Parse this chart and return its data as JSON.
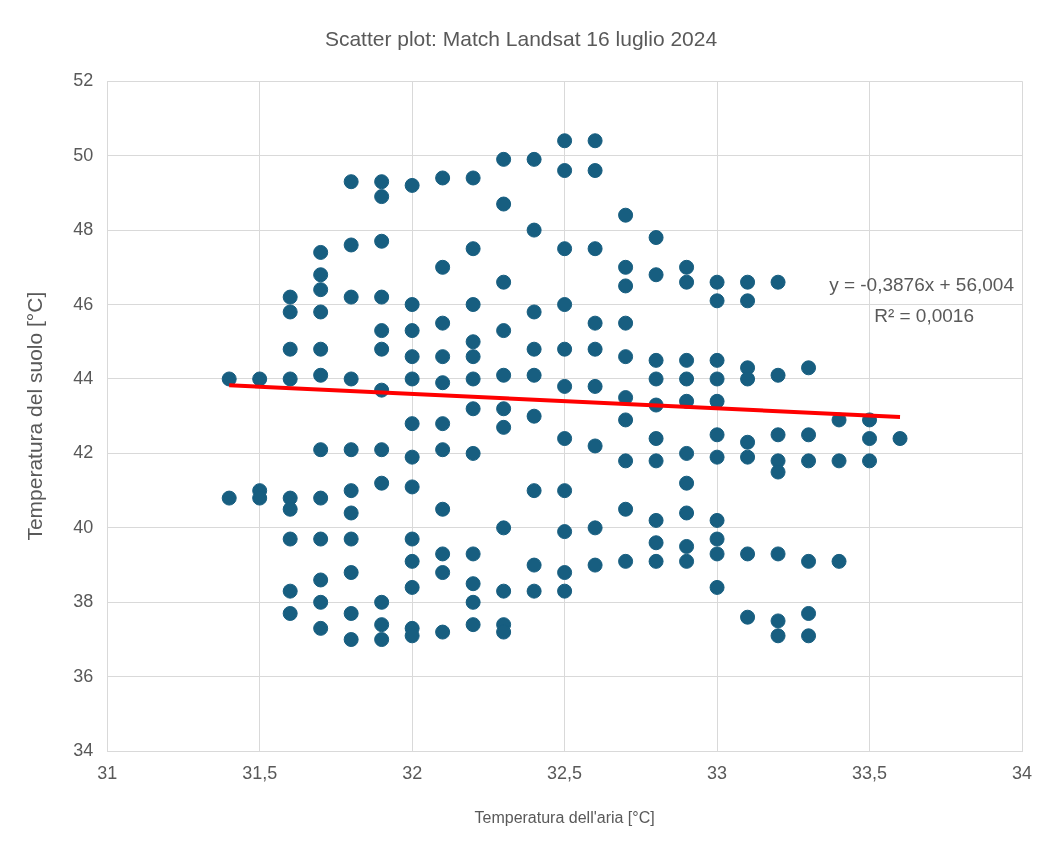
{
  "chart_data": {
    "type": "scatter",
    "title": "Scatter plot: Match Landsat 16 luglio 2024",
    "xlabel": "Temperatura dell'aria [°C]",
    "ylabel": "Temperatura del suolo [°C]",
    "xlim": [
      31,
      34
    ],
    "xticks": [
      31,
      {
        "value": 31.5,
        "label": "31,5"
      },
      32,
      {
        "value": 32.5,
        "label": "32,5"
      },
      33,
      {
        "value": 33.5,
        "label": "33,5"
      },
      34
    ],
    "ylim": [
      34,
      52
    ],
    "yticks": [
      34,
      36,
      38,
      40,
      42,
      44,
      46,
      48,
      50,
      52
    ],
    "grid": true,
    "legend": false,
    "annotations": [
      "y = -0,3876x + 56,004",
      "R² = 0,0016"
    ],
    "series": [
      {
        "marker": "circle",
        "color": "#175e80",
        "x": [
          31.4,
          31.4,
          31.5,
          31.5,
          31.5,
          31.6,
          31.6,
          31.6,
          31.6,
          31.6,
          31.6,
          31.6,
          31.6,
          31.6,
          31.7,
          31.7,
          31.7,
          31.7,
          31.7,
          31.7,
          31.7,
          31.7,
          31.7,
          31.7,
          31.7,
          31.7,
          31.8,
          31.8,
          31.8,
          31.8,
          31.8,
          31.8,
          31.8,
          31.8,
          31.8,
          31.8,
          31.8,
          31.9,
          31.9,
          31.9,
          31.9,
          31.9,
          31.9,
          31.9,
          31.9,
          31.9,
          31.9,
          31.9,
          31.9,
          32,
          32,
          32,
          32,
          32,
          32,
          32,
          32,
          32,
          32,
          32,
          32,
          32,
          32.1,
          32.1,
          32.1,
          32.1,
          32.1,
          32.1,
          32.1,
          32.1,
          32.1,
          32.1,
          32.1,
          32.2,
          32.2,
          32.2,
          32.2,
          32.2,
          32.2,
          32.2,
          32.2,
          32.2,
          32.2,
          32.2,
          32.2,
          32.3,
          32.3,
          32.3,
          32.3,
          32.3,
          32.3,
          32.3,
          32.3,
          32.3,
          32.3,
          32.3,
          32.4,
          32.4,
          32.4,
          32.4,
          32.4,
          32.4,
          32.4,
          32.4,
          32.4,
          32.5,
          32.5,
          32.5,
          32.5,
          32.5,
          32.5,
          32.5,
          32.5,
          32.5,
          32.5,
          32.5,
          32.6,
          32.6,
          32.6,
          32.6,
          32.6,
          32.6,
          32.6,
          32.6,
          32.6,
          32.7,
          32.7,
          32.7,
          32.7,
          32.7,
          32.7,
          32.7,
          32.7,
          32.7,
          32.7,
          32.8,
          32.8,
          32.8,
          32.8,
          32.8,
          32.8,
          32.8,
          32.8,
          32.8,
          32.8,
          32.9,
          32.9,
          32.9,
          32.9,
          32.9,
          32.9,
          32.9,
          32.9,
          32.9,
          32.9,
          33,
          33,
          33,
          33,
          33,
          33,
          33,
          33,
          33,
          33,
          33,
          33.1,
          33.1,
          33.1,
          33.1,
          33.1,
          33.1,
          33.1,
          33.1,
          33.2,
          33.2,
          33.2,
          33.2,
          33.2,
          33.2,
          33.2,
          33.2,
          33.3,
          33.3,
          33.3,
          33.3,
          33.3,
          33.3,
          33.4,
          33.4,
          33.4,
          33.5,
          33.5,
          33.5,
          33.6
        ],
        "values": [
          44,
          40.8,
          44,
          41,
          40.8,
          46.2,
          45.8,
          44.8,
          44,
          40.8,
          40.5,
          39.7,
          38.3,
          37.7,
          47.4,
          46.8,
          46.4,
          45.8,
          44.8,
          44.1,
          42.1,
          40.8,
          39.7,
          38.6,
          38,
          37.3,
          49.3,
          47.6,
          46.2,
          44,
          42.1,
          41,
          40.4,
          39.7,
          38.8,
          37.7,
          37,
          49.3,
          48.9,
          47.7,
          46.2,
          45.3,
          44.8,
          43.7,
          42.1,
          41.2,
          38,
          37.4,
          37,
          49.2,
          46,
          45.3,
          44.6,
          44,
          42.8,
          41.9,
          41.1,
          39.7,
          39.1,
          38.4,
          37.3,
          37.1,
          49.4,
          47,
          45.5,
          44.6,
          43.9,
          42.8,
          42.1,
          40.5,
          39.3,
          38.8,
          37.2,
          49.4,
          47.5,
          46,
          45,
          44.6,
          44,
          43.2,
          42,
          39.3,
          38.5,
          38,
          37.4,
          49.9,
          48.7,
          46.6,
          45.3,
          44.1,
          43.2,
          42.7,
          40,
          38.3,
          37.4,
          37.2,
          49.9,
          48,
          45.8,
          44.8,
          44.1,
          43,
          41,
          39,
          38.3,
          50.4,
          49.6,
          47.5,
          46,
          44.8,
          43.8,
          42.4,
          41,
          39.9,
          38.8,
          38.3,
          50.4,
          49.6,
          47.5,
          45.5,
          44.8,
          43.8,
          42.2,
          40,
          39,
          48.4,
          47,
          46.5,
          45.5,
          44.6,
          43.5,
          42.9,
          41.8,
          40.5,
          39.1,
          47.8,
          46.8,
          44.5,
          44,
          43.3,
          42.4,
          41.8,
          40.2,
          39.6,
          39.1,
          47,
          46.6,
          44.5,
          44,
          43.4,
          42,
          41.2,
          40.4,
          39.5,
          39.1,
          46.6,
          46.1,
          44.5,
          44,
          43.4,
          42.5,
          41.9,
          40.2,
          39.7,
          39.3,
          38.4,
          46.6,
          46.1,
          44.3,
          44,
          42.3,
          41.9,
          39.3,
          37.6,
          46.6,
          44.1,
          42.5,
          41.8,
          41.5,
          39.3,
          37.5,
          37.1,
          44.3,
          42.5,
          41.8,
          39.1,
          37.7,
          37.1,
          42.9,
          41.8,
          39.1,
          42.9,
          42.4,
          41.8,
          42.4
        ]
      },
      {
        "type": "line",
        "marker": "none",
        "color": "#ff0000",
        "x": [
          31.4,
          33.6
        ],
        "values": [
          43.83,
          42.98
        ]
      }
    ]
  }
}
